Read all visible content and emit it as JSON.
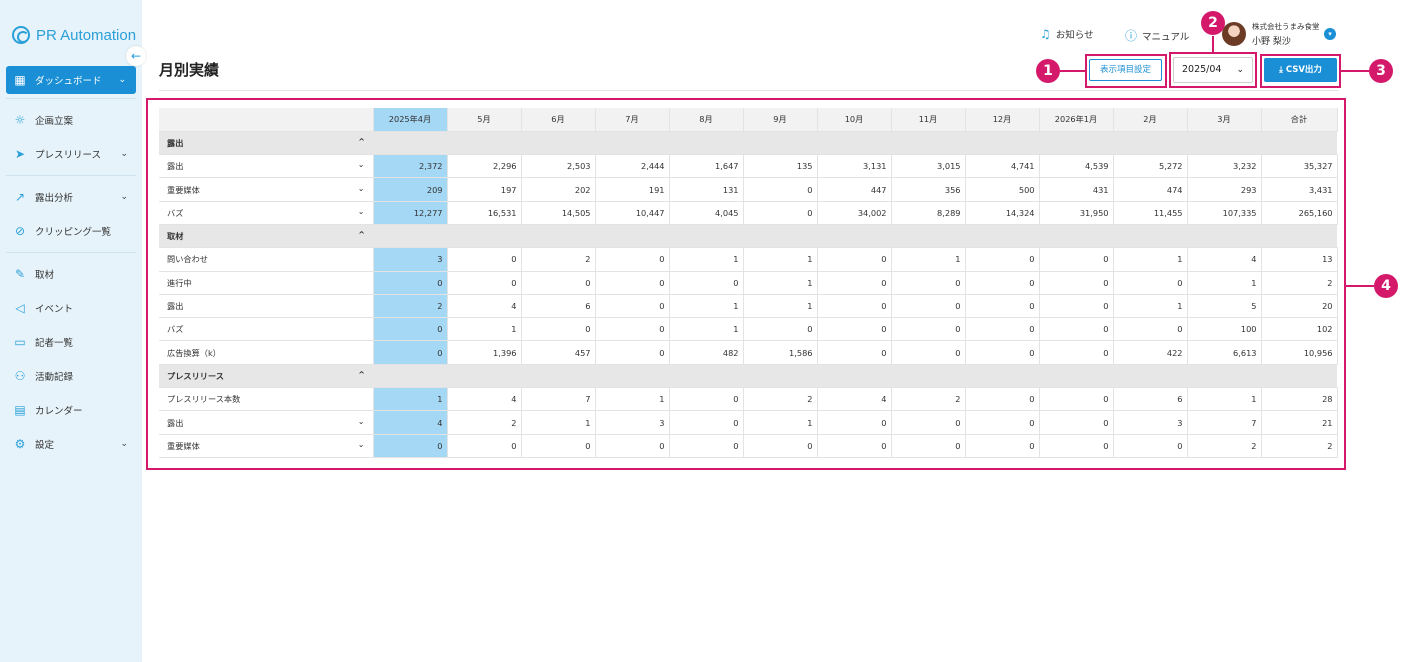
{
  "app": {
    "logo_text": "PR Automation",
    "collapse_icon": "arrow-left-icon"
  },
  "sidebar": {
    "items": [
      {
        "label": "ダッシュボード",
        "icon": "grid-icon",
        "chevron": "⌄",
        "active": true
      },
      {
        "label": "企画立案",
        "icon": "bulb-icon"
      },
      {
        "label": "プレスリリース",
        "icon": "send-icon",
        "chevron": "⌄"
      },
      {
        "label": "露出分析",
        "icon": "chart-icon",
        "chevron": "⌄"
      },
      {
        "label": "クリッピング一覧",
        "icon": "paperclip-icon"
      },
      {
        "label": "取材",
        "icon": "pen-icon"
      },
      {
        "label": "イベント",
        "icon": "megaphone-icon"
      },
      {
        "label": "記者一覧",
        "icon": "id-card-icon"
      },
      {
        "label": "活動記録",
        "icon": "people-icon"
      },
      {
        "label": "カレンダー",
        "icon": "calendar-icon"
      },
      {
        "label": "設定",
        "icon": "gear-icon",
        "chevron": "⌄"
      }
    ]
  },
  "header": {
    "notice_label": "お知らせ",
    "manual_label": "マニュアル",
    "company": "株式会社うまみ食堂",
    "username": "小野 梨沙"
  },
  "page": {
    "title": "月別実績",
    "settings_button": "表示項目設定",
    "month_value": "2025/04",
    "csv_button": "CSV出力"
  },
  "callouts": [
    "1",
    "2",
    "3",
    "4"
  ],
  "table": {
    "headers": [
      "2025年4月",
      "5月",
      "6月",
      "7月",
      "8月",
      "9月",
      "10月",
      "11月",
      "12月",
      "2026年1月",
      "2月",
      "3月",
      "合計"
    ],
    "rows": [
      {
        "type": "section",
        "label": "露出",
        "chevron": "^"
      },
      {
        "type": "row",
        "label": "露出",
        "chevron": "⌄",
        "values": [
          "2,372",
          "2,296",
          "2,503",
          "2,444",
          "1,647",
          "135",
          "3,131",
          "3,015",
          "4,741",
          "4,539",
          "5,272",
          "3,232",
          "35,327"
        ]
      },
      {
        "type": "row",
        "label": "重要媒体",
        "chevron": "⌄",
        "values": [
          "209",
          "197",
          "202",
          "191",
          "131",
          "0",
          "447",
          "356",
          "500",
          "431",
          "474",
          "293",
          "3,431"
        ]
      },
      {
        "type": "row",
        "label": "バズ",
        "chevron": "⌄",
        "values": [
          "12,277",
          "16,531",
          "14,505",
          "10,447",
          "4,045",
          "0",
          "34,002",
          "8,289",
          "14,324",
          "31,950",
          "11,455",
          "107,335",
          "265,160"
        ]
      },
      {
        "type": "section",
        "label": "取材",
        "chevron": "^"
      },
      {
        "type": "row",
        "label": "問い合わせ",
        "values": [
          "3",
          "0",
          "2",
          "0",
          "1",
          "1",
          "0",
          "1",
          "0",
          "0",
          "1",
          "4",
          "13"
        ]
      },
      {
        "type": "row",
        "label": "進行中",
        "values": [
          "0",
          "0",
          "0",
          "0",
          "0",
          "1",
          "0",
          "0",
          "0",
          "0",
          "0",
          "1",
          "2"
        ]
      },
      {
        "type": "row",
        "label": "露出",
        "values": [
          "2",
          "4",
          "6",
          "0",
          "1",
          "1",
          "0",
          "0",
          "0",
          "0",
          "1",
          "5",
          "20"
        ]
      },
      {
        "type": "row",
        "label": "バズ",
        "values": [
          "0",
          "1",
          "0",
          "0",
          "1",
          "0",
          "0",
          "0",
          "0",
          "0",
          "0",
          "100",
          "102"
        ]
      },
      {
        "type": "row",
        "label": "広告換算（k）",
        "values": [
          "0",
          "1,396",
          "457",
          "0",
          "482",
          "1,586",
          "0",
          "0",
          "0",
          "0",
          "422",
          "6,613",
          "10,956"
        ]
      },
      {
        "type": "section",
        "label": "プレスリリース",
        "chevron": "^"
      },
      {
        "type": "row",
        "label": "プレスリリース本数",
        "values": [
          "1",
          "4",
          "7",
          "1",
          "0",
          "2",
          "4",
          "2",
          "0",
          "0",
          "6",
          "1",
          "28"
        ]
      },
      {
        "type": "row",
        "label": "露出",
        "chevron": "⌄",
        "values": [
          "4",
          "2",
          "1",
          "3",
          "0",
          "1",
          "0",
          "0",
          "0",
          "0",
          "3",
          "7",
          "21"
        ]
      },
      {
        "type": "row",
        "label": "重要媒体",
        "chevron": "⌄",
        "values": [
          "0",
          "0",
          "0",
          "0",
          "0",
          "0",
          "0",
          "0",
          "0",
          "0",
          "0",
          "2",
          "2"
        ]
      }
    ]
  },
  "colors": {
    "accent": "#1a8fd6",
    "highlight_column": "#a5d8f5",
    "callout": "#d4196b",
    "sidebar_bg": "#e6f3fa"
  }
}
